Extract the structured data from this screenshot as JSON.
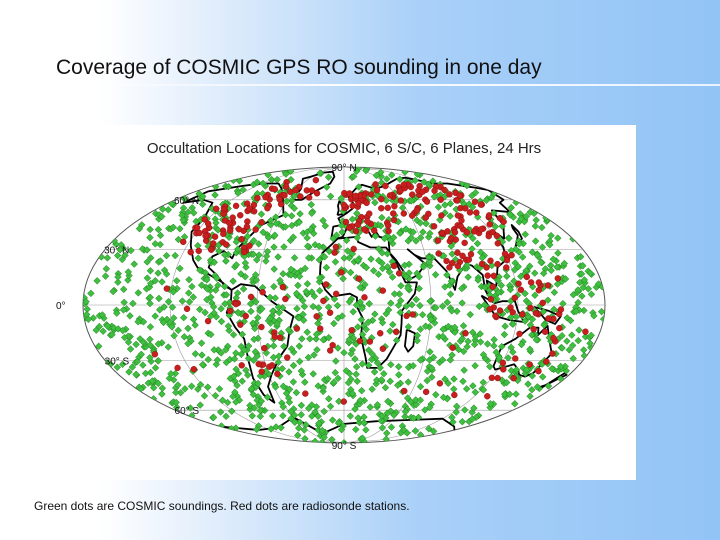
{
  "slide": {
    "title": "Coverage of COSMIC GPS RO sounding in one day",
    "caption": "Green dots are COSMIC soundings. Red dots are radiosonde stations."
  },
  "map": {
    "title": "Occultation Locations for COSMIC, 6 S/C, 6 Planes, 24 Hrs",
    "projection": "mollweide",
    "latitude_labels": [
      {
        "lat": 90,
        "text": "90° N"
      },
      {
        "lat": 60,
        "text": "60° N"
      },
      {
        "lat": 30,
        "text": "30° N"
      },
      {
        "lat": 0,
        "text": "0°"
      },
      {
        "lat": -30,
        "text": "30° S"
      },
      {
        "lat": -60,
        "text": "60° S"
      },
      {
        "lat": -90,
        "text": "90° S"
      }
    ],
    "graticule": {
      "latitudes": [
        -60,
        -30,
        0,
        30,
        60
      ],
      "longitudes": [
        -120,
        -60,
        0,
        60,
        120
      ]
    },
    "legend": [
      {
        "name": "COSMIC soundings",
        "color": "#3fbf3f",
        "marker": "diamond"
      },
      {
        "name": "Radiosonde stations",
        "color": "#c81e1e",
        "marker": "circle"
      }
    ],
    "colors": {
      "coastline": "#000000",
      "grid": "#9a9a9a",
      "outline": "#555555"
    }
  }
}
